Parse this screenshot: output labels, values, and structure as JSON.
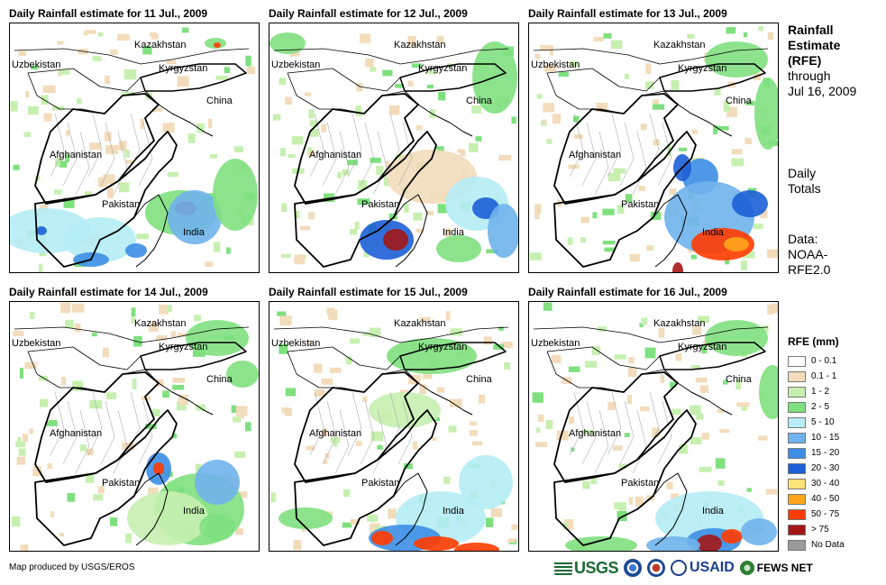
{
  "panels": [
    {
      "title": "Daily Rainfall estimate for 11 Jul., 2009",
      "labels": {
        "kazakhstan": "Kazakhstan",
        "uzbekistan": "Uzbekistan",
        "kyrgyzstan": "Kyrgyzstan",
        "china": "China",
        "afghanistan": "Afghanistan",
        "pakistan": "Pakistan",
        "india": "India"
      }
    },
    {
      "title": "Daily Rainfall estimate for 12 Jul., 2009",
      "labels": {
        "kazakhstan": "Kazakhstan",
        "uzbekistan": "Uzbekistan",
        "kyrgyzstan": "Kyrgyzstan",
        "china": "China",
        "afghanistan": "Afghanistan",
        "pakistan": "Pakistan",
        "india": "India"
      }
    },
    {
      "title": "Daily Rainfall estimate for 13 Jul., 2009",
      "labels": {
        "kazakhstan": "Kazakhstan",
        "uzbekistan": "Uzbekistan",
        "kyrgyzstan": "Kyrgyzstan",
        "china": "China",
        "afghanistan": "Afghanistan",
        "pakistan": "Pakistan",
        "india": "India"
      }
    },
    {
      "title": "Daily Rainfall estimate for 14 Jul., 2009",
      "labels": {
        "kazakhstan": "Kazakhstan",
        "uzbekistan": "Uzbekistan",
        "kyrgyzstan": "Kyrgyzstan",
        "china": "China",
        "afghanistan": "Afghanistan",
        "pakistan": "Pakistan",
        "india": "India"
      }
    },
    {
      "title": "Daily Rainfall estimate for 15 Jul., 2009",
      "labels": {
        "kazakhstan": "Kazakhstan",
        "uzbekistan": "Uzbekistan",
        "kyrgyzstan": "Kyrgyzstan",
        "china": "China",
        "afghanistan": "Afghanistan",
        "pakistan": "Pakistan",
        "india": "India"
      }
    },
    {
      "title": "Daily Rainfall estimate for 16 Jul., 2009",
      "labels": {
        "kazakhstan": "Kazakhstan",
        "uzbekistan": "Uzbekistan",
        "kyrgyzstan": "Kyrgyzstan",
        "china": "China",
        "afghanistan": "Afghanistan",
        "pakistan": "Pakistan",
        "india": "India"
      }
    }
  ],
  "sidebar": {
    "title_line1": "Rainfall",
    "title_line2": "Estimate",
    "title_line3": "(RFE)",
    "through": "through",
    "date": "Jul 16, 2009",
    "daily1": "Daily",
    "daily2": "Totals",
    "data1": "Data:",
    "data2": "NOAA-",
    "data3": "RFE2.0"
  },
  "legend": {
    "title": "RFE (mm)",
    "items": [
      {
        "label": "0 - 0.1",
        "color": "#ffffff"
      },
      {
        "label": "0.1 - 1",
        "color": "#f2dcbb"
      },
      {
        "label": "1 - 2",
        "color": "#c7f0b0"
      },
      {
        "label": "2 - 5",
        "color": "#7fe07f"
      },
      {
        "label": "5 - 10",
        "color": "#b5ecf5"
      },
      {
        "label": "10 - 15",
        "color": "#6fb2ec"
      },
      {
        "label": "15 - 20",
        "color": "#3c8ee6"
      },
      {
        "label": "20 - 30",
        "color": "#1c5fd6"
      },
      {
        "label": "30 - 40",
        "color": "#ffe27a"
      },
      {
        "label": "40 - 50",
        "color": "#ffa51c"
      },
      {
        "label": "50 - 75",
        "color": "#ff3b00"
      },
      {
        "label": "> 75",
        "color": "#a31717"
      },
      {
        "label": "No Data",
        "color": "#9a9a9a"
      }
    ]
  },
  "credit": "Map produced by USGS/EROS",
  "logos": {
    "usgs": "USGS",
    "usaid": "USAID",
    "fews": "FEWS NET"
  }
}
